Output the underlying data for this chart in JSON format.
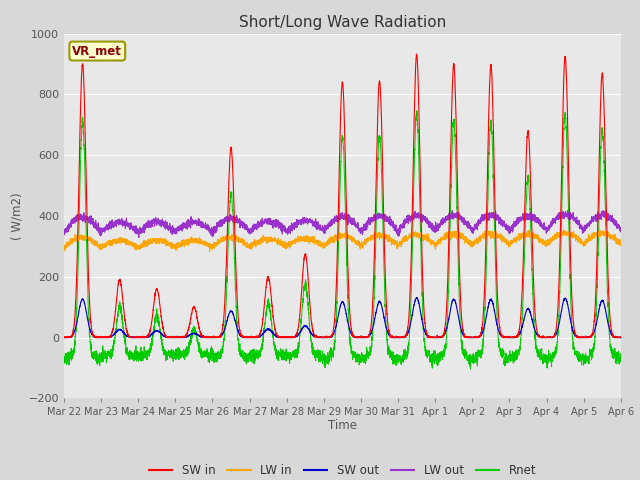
{
  "title": "Short/Long Wave Radiation",
  "ylabel": "( W/m2)",
  "xlabel": "Time",
  "station_label": "VR_met",
  "ylim": [
    -200,
    1000
  ],
  "series_colors": {
    "SW_in": "#ff0000",
    "LW_in": "#ffa500",
    "SW_out": "#0000cc",
    "LW_out": "#9932cc",
    "Rnet": "#00cc00"
  },
  "legend_labels": [
    "SW in",
    "LW in",
    "SW out",
    "LW out",
    "Rnet"
  ],
  "x_tick_labels": [
    "Mar 22",
    "Mar 23",
    "Mar 24",
    "Mar 25",
    "Mar 26",
    "Mar 27",
    "Mar 28",
    "Mar 29",
    "Mar 30",
    "Mar 31",
    "Apr 1",
    "Apr 2",
    "Apr 3",
    "Apr 4",
    "Apr 5",
    "Apr 6"
  ],
  "fig_background": "#d8d8d8",
  "plot_background": "#e8e8e8",
  "title_fontsize": 11,
  "grid_color": "#ffffff",
  "n_days": 15,
  "points_per_day": 288,
  "sw_in_peaks": [
    900,
    190,
    160,
    100,
    625,
    200,
    275,
    840,
    845,
    930,
    900,
    895,
    680,
    925,
    870
  ],
  "lw_in_base": 310,
  "lw_out_base": 355
}
